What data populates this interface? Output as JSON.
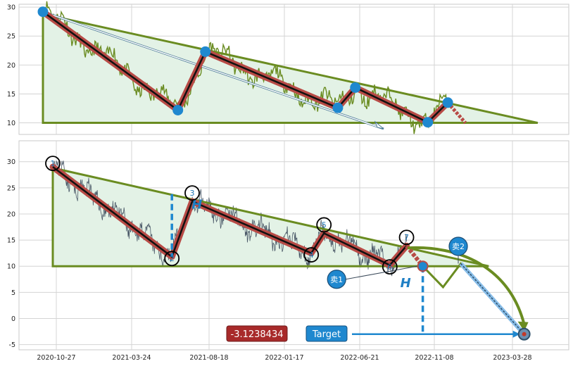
{
  "chart_data": [
    {
      "type": "line",
      "ylim": [
        8,
        30.5
      ],
      "yticks": [
        10,
        15,
        20,
        25,
        30
      ],
      "zigzag": [
        [
          0,
          29.2
        ],
        [
          0.27,
          12.2
        ],
        [
          0.325,
          22.3
        ],
        [
          0.59,
          12.6
        ],
        [
          0.625,
          16.1
        ],
        [
          0.77,
          10.1
        ],
        [
          0.81,
          13.5
        ]
      ],
      "triangle": [
        [
          0,
          28.8
        ],
        [
          0,
          10.0
        ],
        [
          0.99,
          10.0
        ]
      ],
      "colors": {
        "fill": "#e3f2e6",
        "edge": "#6a8c21",
        "series": "#6a8c21",
        "zig_outer": "#b84b46",
        "zig_inner": "#111111",
        "marker": "#1f88cf",
        "arrow": "#4a7a95"
      }
    },
    {
      "type": "line",
      "ylim": [
        -6,
        34
      ],
      "yticks": [
        -5,
        0,
        5,
        10,
        15,
        20,
        25,
        30
      ],
      "x_tick_labels": [
        "2020-10-27",
        "2021-03-24",
        "2021-08-18",
        "2022-01-17",
        "2022-06-21",
        "2022-11-08",
        "2023-03-28"
      ],
      "pivots": [
        {
          "label": "1",
          "t": 0,
          "v": 29.0
        },
        {
          "label": "2",
          "t": 0.235,
          "v": 11.8
        },
        {
          "label": "3",
          "t": 0.275,
          "v": 22.4
        },
        {
          "label": "4",
          "t": 0.51,
          "v": 12.5
        },
        {
          "label": "5",
          "t": 0.535,
          "v": 16.3
        },
        {
          "label": "6",
          "t": 0.665,
          "v": 10.2
        },
        {
          "label": "7",
          "t": 0.698,
          "v": 13.9
        }
      ],
      "triangle": [
        [
          0,
          28.8
        ],
        [
          0,
          10.0
        ],
        [
          0.86,
          10.0
        ]
      ],
      "projection": [
        [
          0.73,
          10.0
        ],
        [
          0.77,
          6.0
        ],
        [
          0.805,
          10.5
        ],
        [
          0.93,
          -3.0
        ]
      ],
      "sell_markers": [
        {
          "label": "卖1",
          "t": 0.56,
          "v": 7.5
        },
        {
          "label": "卖2",
          "t": 0.8,
          "v": 13.8
        }
      ],
      "h_label": "H",
      "value_box": "-3.1238434",
      "target_label": "Target",
      "target_value": -3.0,
      "colors": {
        "fill": "#e3f2e6",
        "edge": "#6a8c21",
        "series": "#4b5968",
        "zig_outer": "#b84b46",
        "zig_inner": "#111111",
        "accent": "#1f88cf",
        "value_box": "#a82a2a",
        "projection": "#6a8c21",
        "projection_dash": "#88bde8"
      }
    }
  ]
}
